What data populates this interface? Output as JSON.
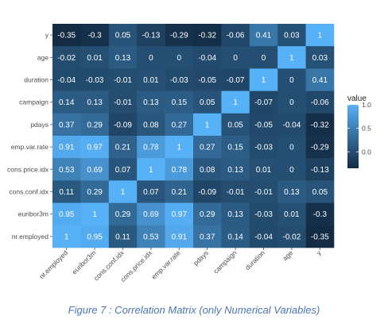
{
  "chart_data": {
    "type": "heatmap",
    "x_categories": [
      "nr.employed",
      "euribor3m",
      "cons.conf.idx",
      "cons.price.idx",
      "emp.var.rate",
      "pdays",
      "campaign",
      "duration",
      "age",
      "y"
    ],
    "y_categories": [
      "y",
      "age",
      "duration",
      "campaign",
      "pdays",
      "emp.var.rate",
      "cons.price.idx",
      "cons.conf.idx",
      "euribor3m",
      "nr.employed"
    ],
    "values": [
      [
        -0.35,
        -0.3,
        0.05,
        -0.13,
        -0.29,
        -0.32,
        -0.06,
        0.41,
        0.03,
        1
      ],
      [
        -0.02,
        0.01,
        0.13,
        0,
        0,
        -0.04,
        0,
        0,
        1,
        0.03
      ],
      [
        -0.04,
        -0.03,
        -0.01,
        0.01,
        -0.03,
        -0.05,
        -0.07,
        1,
        0,
        0.41
      ],
      [
        0.14,
        0.13,
        -0.01,
        0.13,
        0.15,
        0.05,
        1,
        -0.07,
        0,
        -0.06
      ],
      [
        0.37,
        0.29,
        -0.09,
        0.08,
        0.27,
        1,
        0.05,
        -0.05,
        -0.04,
        -0.32
      ],
      [
        0.91,
        0.97,
        0.21,
        0.78,
        1,
        0.27,
        0.15,
        -0.03,
        0,
        -0.29
      ],
      [
        0.53,
        0.69,
        0.07,
        1,
        0.78,
        0.08,
        0.13,
        0.01,
        0,
        -0.13
      ],
      [
        0.11,
        0.29,
        1,
        0.07,
        0.21,
        -0.09,
        -0.01,
        -0.01,
        0.13,
        0.05
      ],
      [
        0.95,
        1,
        0.29,
        0.69,
        0.97,
        0.29,
        0.13,
        -0.03,
        0.01,
        -0.3
      ],
      [
        1,
        0.95,
        0.11,
        0.53,
        0.91,
        0.37,
        0.14,
        -0.04,
        -0.02,
        -0.35
      ]
    ],
    "value_labels": [
      [
        "-0.35",
        "-0.3",
        "0.05",
        "-0.13",
        "-0.29",
        "-0.32",
        "-0.06",
        "0.41",
        "0.03",
        "1"
      ],
      [
        "-0.02",
        "0.01",
        "0.13",
        "0",
        "0",
        "-0.04",
        "0",
        "0",
        "1",
        "0.03"
      ],
      [
        "-0.04",
        "-0.03",
        "-0.01",
        "0.01",
        "-0.03",
        "-0.05",
        "-0.07",
        "1",
        "0",
        "0.41"
      ],
      [
        "0.14",
        "0.13",
        "-0.01",
        "0.13",
        "0.15",
        "0.05",
        "1",
        "-0.07",
        "0",
        "-0.06"
      ],
      [
        "0.37",
        "0.29",
        "-0.09",
        "0.08",
        "0.27",
        "1",
        "0.05",
        "-0.05",
        "-0.04",
        "-0.32"
      ],
      [
        "0.91",
        "0.97",
        "0.21",
        "0.78",
        "1",
        "0.27",
        "0.15",
        "-0.03",
        "0",
        "-0.29"
      ],
      [
        "0.53",
        "0.69",
        "0.07",
        "1",
        "0.78",
        "0.08",
        "0.13",
        "0.01",
        "0",
        "-0.13"
      ],
      [
        "0.11",
        "0.29",
        "1",
        "0.07",
        "0.21",
        "-0.09",
        "-0.01",
        "-0.01",
        "0.13",
        "0.05"
      ],
      [
        "0.95",
        "1",
        "0.29",
        "0.69",
        "0.97",
        "0.29",
        "0.13",
        "-0.03",
        "0.01",
        "-0.3"
      ],
      [
        "1",
        "0.95",
        "0.11",
        "0.53",
        "0.91",
        "0.37",
        "0.14",
        "-0.04",
        "-0.02",
        "-0.35"
      ]
    ],
    "color_range": [
      -0.35,
      1
    ],
    "colors": {
      "low": "#132b43",
      "high": "#56b1f7",
      "panel": "#ebebeb"
    },
    "legend": {
      "title": "value",
      "ticks": [
        1.0,
        0.5,
        0.0
      ],
      "tick_labels": [
        "1.0",
        "0.5",
        "0.0"
      ],
      "position": "right"
    },
    "caption": "Figure 7 : Correlation Matrix (only Numerical Variables)"
  }
}
